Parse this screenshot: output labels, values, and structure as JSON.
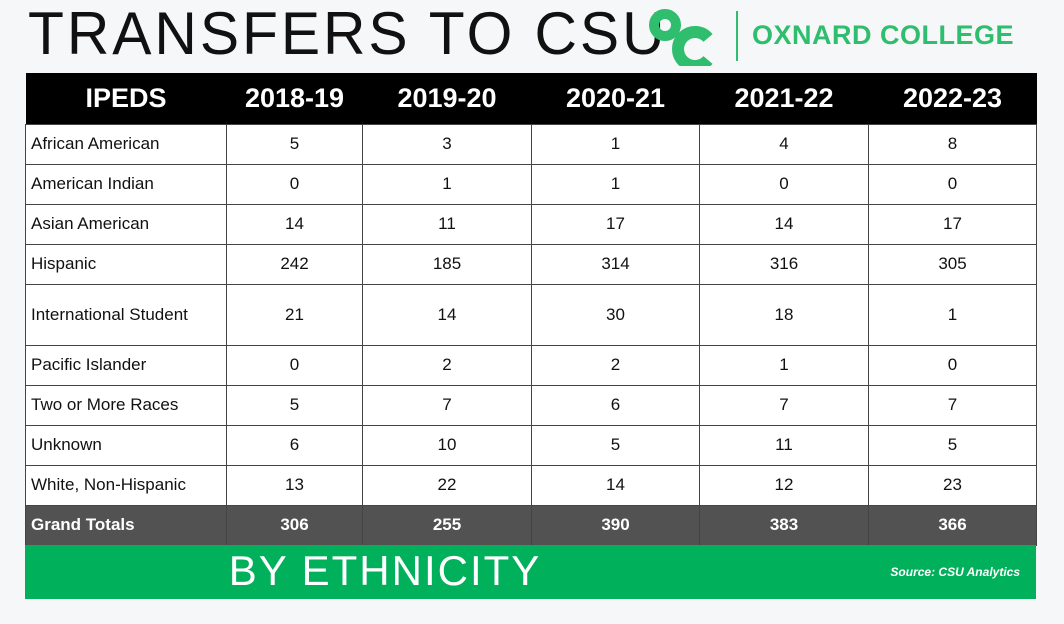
{
  "header": {
    "title": "TRANSFERS TO CSU",
    "college": "OXNARD COLLEGE",
    "logo_text": "OC"
  },
  "table": {
    "columns": [
      "IPEDS",
      "2018-19",
      "2019-20",
      "2020-21",
      "2021-22",
      "2022-23"
    ],
    "rows": [
      {
        "label": "African American",
        "values": [
          "5",
          "3",
          "1",
          "4",
          "8"
        ]
      },
      {
        "label": "American Indian",
        "values": [
          "0",
          "1",
          "1",
          "0",
          "0"
        ]
      },
      {
        "label": "Asian American",
        "values": [
          "14",
          "11",
          "17",
          "14",
          "17"
        ]
      },
      {
        "label": "Hispanic",
        "values": [
          "242",
          "185",
          "314",
          "316",
          "305"
        ]
      },
      {
        "label": "International Student",
        "values": [
          "21",
          "14",
          "30",
          "18",
          "1"
        ]
      },
      {
        "label": "Pacific Islander",
        "values": [
          "0",
          "2",
          "2",
          "1",
          "0"
        ]
      },
      {
        "label": "Two or More Races",
        "values": [
          "5",
          "7",
          "6",
          "7",
          "7"
        ]
      },
      {
        "label": "Unknown",
        "values": [
          "6",
          "10",
          "5",
          "11",
          "5"
        ]
      },
      {
        "label": "White, Non-Hispanic",
        "values": [
          "13",
          "22",
          "14",
          "12",
          "23"
        ]
      }
    ],
    "total": {
      "label": "Grand Totals",
      "values": [
        "306",
        "255",
        "390",
        "383",
        "366"
      ]
    }
  },
  "footer": {
    "subtitle": "BY ETHNICITY",
    "source": "Source: CSU Analytics"
  },
  "colors": {
    "brand_green": "#2fbd6e",
    "banner_green": "#00b05a",
    "total_gray": "#525252"
  }
}
